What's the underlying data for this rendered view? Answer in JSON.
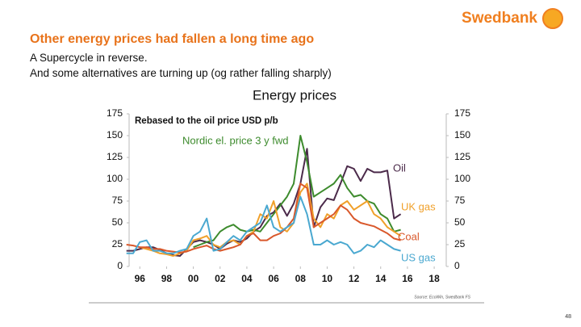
{
  "header": {
    "logo": "Swedbank",
    "title": "Other energy prices had fallen a long time ago",
    "subtitle_lines": [
      "A Supercycle in reverse.",
      "And some alternatives are turning up (og rather falling sharply)"
    ]
  },
  "chart_data": {
    "type": "line",
    "title": "Energy prices",
    "annotation": "Rebased to the oil price USD p/b",
    "x": [
      1995,
      1995.5,
      1996,
      1996.5,
      1997,
      1997.5,
      1998,
      1998.5,
      1999,
      1999.5,
      2000,
      2000.5,
      2001,
      2001.5,
      2002,
      2002.5,
      2003,
      2003.5,
      2004,
      2004.5,
      2005,
      2005.5,
      2006,
      2006.5,
      2007,
      2007.5,
      2008,
      2008.5,
      2009,
      2009.5,
      2010,
      2010.5,
      2011,
      2011.5,
      2012,
      2012.5,
      2013,
      2013.5,
      2014,
      2014.5,
      2015,
      2015.5
    ],
    "series": [
      {
        "name": "Oil",
        "color": "#4b2a4a",
        "values": [
          18,
          18,
          20,
          22,
          22,
          19,
          15,
          13,
          12,
          20,
          28,
          30,
          28,
          25,
          20,
          26,
          30,
          28,
          32,
          40,
          45,
          58,
          62,
          72,
          58,
          72,
          95,
          135,
          45,
          68,
          78,
          76,
          95,
          115,
          112,
          98,
          112,
          108,
          108,
          110,
          55,
          60
        ]
      },
      {
        "name": "Nordic el. price 3 y fwd",
        "color": "#3d8b2d",
        "values": [
          null,
          null,
          null,
          null,
          null,
          null,
          null,
          null,
          null,
          null,
          22,
          25,
          28,
          30,
          40,
          45,
          48,
          42,
          40,
          42,
          40,
          50,
          60,
          70,
          80,
          95,
          150,
          120,
          80,
          85,
          90,
          95,
          105,
          90,
          80,
          82,
          75,
          72,
          60,
          55,
          40,
          42
        ]
      },
      {
        "name": "UK gas",
        "color": "#f0a02a",
        "values": [
          null,
          null,
          22,
          20,
          18,
          15,
          14,
          12,
          15,
          18,
          30,
          32,
          35,
          25,
          22,
          28,
          30,
          25,
          35,
          40,
          60,
          55,
          75,
          45,
          40,
          50,
          85,
          95,
          55,
          45,
          60,
          55,
          70,
          75,
          65,
          70,
          75,
          60,
          55,
          45,
          40,
          35
        ]
      },
      {
        "name": "Coal",
        "color": "#d9582b",
        "values": [
          25,
          24,
          22,
          22,
          20,
          20,
          18,
          17,
          16,
          17,
          20,
          22,
          24,
          20,
          18,
          20,
          22,
          25,
          35,
          38,
          30,
          30,
          35,
          38,
          45,
          55,
          95,
          90,
          45,
          50,
          55,
          60,
          70,
          65,
          55,
          50,
          48,
          46,
          42,
          38,
          32,
          30
        ]
      },
      {
        "name": "US gas",
        "color": "#4aa8d0",
        "values": [
          15,
          15,
          28,
          30,
          18,
          18,
          15,
          15,
          18,
          20,
          35,
          40,
          55,
          18,
          20,
          28,
          35,
          30,
          40,
          45,
          50,
          70,
          45,
          40,
          45,
          50,
          80,
          60,
          25,
          25,
          30,
          25,
          28,
          25,
          15,
          18,
          25,
          22,
          30,
          25,
          20,
          18
        ]
      }
    ],
    "xlim": [
      1995.2,
      2018.9
    ],
    "xticks": [
      {
        "value": 1996,
        "label": "96"
      },
      {
        "value": 1998,
        "label": "98"
      },
      {
        "value": 2000,
        "label": "00"
      },
      {
        "value": 2002,
        "label": "02"
      },
      {
        "value": 2004,
        "label": "04"
      },
      {
        "value": 2006,
        "label": "06"
      },
      {
        "value": 2008,
        "label": "08"
      },
      {
        "value": 2010,
        "label": "10"
      },
      {
        "value": 2012,
        "label": "12"
      },
      {
        "value": 2014,
        "label": "14"
      },
      {
        "value": 2016,
        "label": "16"
      },
      {
        "value": 2018,
        "label": "18"
      }
    ],
    "ylim": [
      0,
      175
    ],
    "yticks": [
      0,
      25,
      50,
      75,
      100,
      125,
      150,
      175
    ],
    "y2lim": [
      0,
      175
    ],
    "y2ticks": [
      0,
      25,
      50,
      75,
      100,
      125,
      150,
      175
    ],
    "source": "Source: EcoWin, Swedbank FS"
  },
  "footer": {
    "page_number": "48"
  }
}
